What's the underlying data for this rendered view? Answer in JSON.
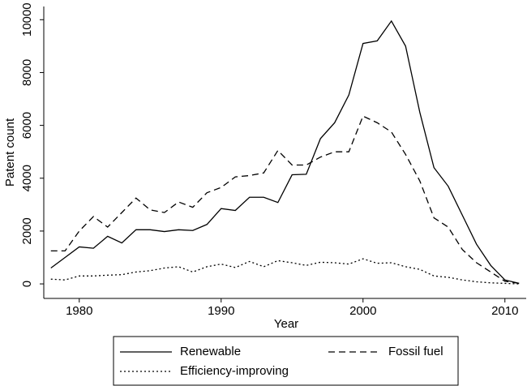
{
  "chart_data": {
    "type": "line",
    "x_label": "Year",
    "y_label": "Patent count",
    "x": [
      1978,
      1979,
      1980,
      1981,
      1982,
      1983,
      1984,
      1985,
      1986,
      1987,
      1988,
      1989,
      1990,
      1991,
      1992,
      1993,
      1994,
      1995,
      1996,
      1997,
      1998,
      1999,
      2000,
      2001,
      2002,
      2003,
      2004,
      2005,
      2006,
      2007,
      2008,
      2009,
      2010,
      2011
    ],
    "series": [
      {
        "name": "Renewable",
        "color": "#000000",
        "style": "solid",
        "values": [
          600,
          1000,
          1400,
          1350,
          1800,
          1550,
          2050,
          2050,
          1980,
          2050,
          2020,
          2250,
          2850,
          2780,
          3280,
          3280,
          3080,
          4130,
          4150,
          5500,
          6100,
          7150,
          9100,
          9200,
          9950,
          9000,
          6500,
          4400,
          3700,
          2600,
          1500,
          700,
          150,
          20
        ]
      },
      {
        "name": "Fossil fuel",
        "color": "#000000",
        "style": "dashed",
        "values": [
          1250,
          1250,
          2000,
          2550,
          2150,
          2700,
          3250,
          2800,
          2700,
          3100,
          2900,
          3450,
          3650,
          4050,
          4100,
          4200,
          5050,
          4500,
          4500,
          4800,
          5000,
          5000,
          6350,
          6100,
          5750,
          4900,
          3900,
          2500,
          2150,
          1300,
          800,
          450,
          100,
          20
        ]
      },
      {
        "name": "Efficiency-improving",
        "color": "#000000",
        "style": "dotted",
        "values": [
          180,
          150,
          300,
          300,
          330,
          350,
          450,
          500,
          600,
          650,
          450,
          650,
          750,
          620,
          850,
          650,
          880,
          800,
          700,
          820,
          800,
          750,
          950,
          780,
          800,
          650,
          550,
          300,
          250,
          150,
          80,
          40,
          20,
          0
        ]
      }
    ],
    "xlim": [
      1977.5,
      2011.5
    ],
    "xticks": [
      1980,
      1990,
      2000,
      2010
    ],
    "ylim": [
      -550,
      10500
    ],
    "yticks": [
      0,
      2000,
      4000,
      6000,
      8000,
      10000
    ],
    "grid": false,
    "legend": "bottom"
  }
}
